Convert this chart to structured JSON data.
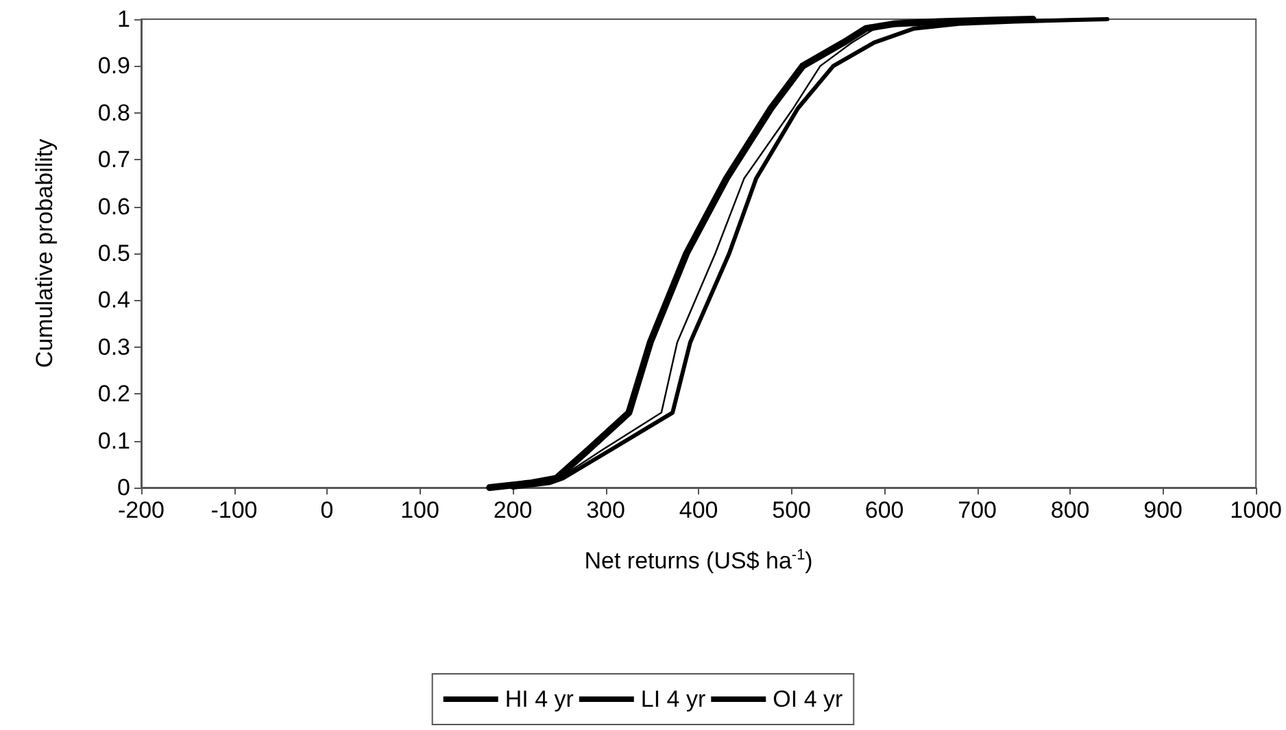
{
  "chart_data": {
    "type": "line",
    "xlabel": "Net returns (US$ ha$^{-1}$)",
    "ylabel": "Cumulative probability",
    "xlim": [
      -200,
      1000
    ],
    "xticks": [
      -200,
      -100,
      0,
      100,
      200,
      300,
      400,
      500,
      600,
      700,
      800,
      900,
      1000
    ],
    "ylim": [
      0,
      1
    ],
    "yticks": [
      0,
      0.1,
      0.2,
      0.3,
      0.4,
      0.5,
      0.6,
      0.7,
      0.8,
      0.9,
      1
    ],
    "grid": false,
    "legend": "bottom",
    "marker": "none",
    "line_style": "solid",
    "series": [
      {
        "name": "HI 4 yr",
        "color": "#000000",
        "x": [
          175,
          220,
          247,
          281,
          325,
          348,
          387,
          430,
          478,
          512,
          556,
          580,
          610,
          660,
          720,
          760
        ],
        "values": [
          0,
          0.01,
          0.02,
          0.08,
          0.16,
          0.31,
          0.5,
          0.66,
          0.81,
          0.9,
          0.95,
          0.98,
          0.99,
          0.995,
          0.998,
          1
        ]
      },
      {
        "name": "LI 4 yr",
        "color": "#000000",
        "x": [
          200,
          240,
          254,
          305,
          372,
          391,
          433,
          462,
          507,
          545,
          589,
          632,
          680,
          740,
          800,
          840
        ],
        "values": [
          0,
          0.01,
          0.02,
          0.08,
          0.16,
          0.31,
          0.5,
          0.66,
          0.81,
          0.9,
          0.95,
          0.98,
          0.99,
          0.995,
          0.998,
          1
        ]
      },
      {
        "name": "OI 4 yr",
        "color": "#000000",
        "x": [
          190,
          230,
          250,
          296,
          360,
          377,
          418,
          449,
          502,
          531,
          565,
          590,
          630,
          690,
          760,
          800
        ],
        "values": [
          0,
          0.01,
          0.02,
          0.08,
          0.16,
          0.31,
          0.5,
          0.66,
          0.81,
          0.9,
          0.95,
          0.98,
          0.99,
          0.995,
          0.998,
          1
        ]
      }
    ]
  }
}
